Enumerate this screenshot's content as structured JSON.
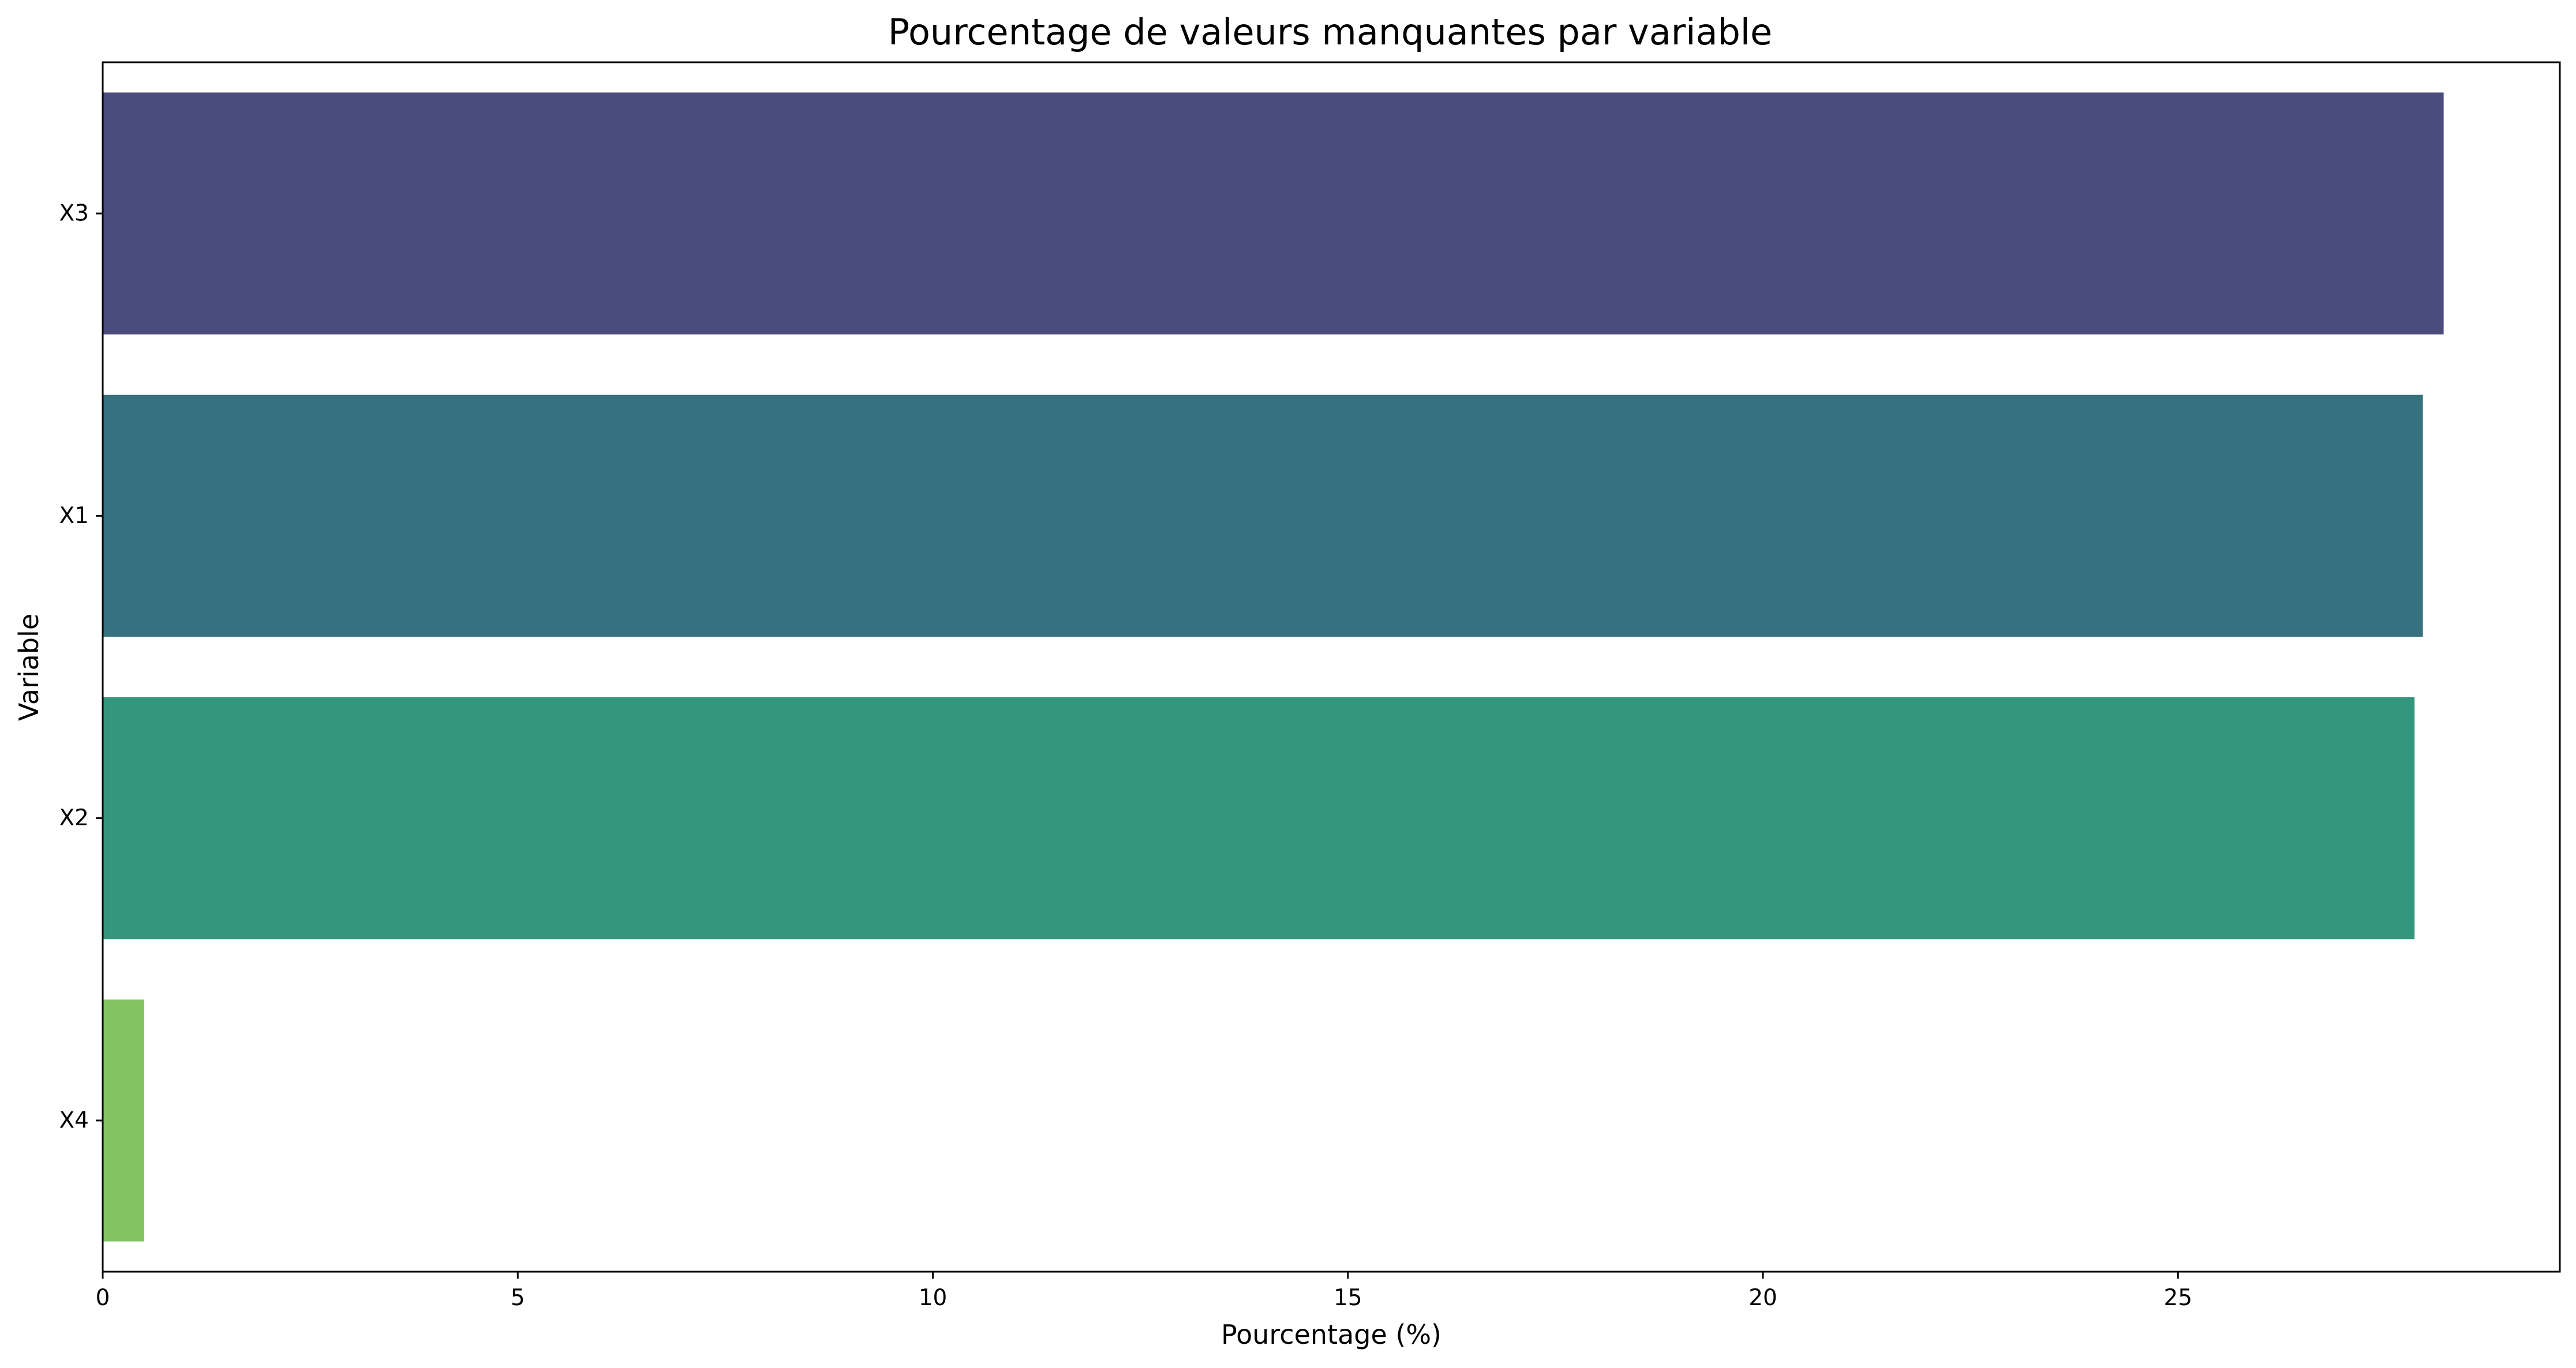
{
  "chart_data": {
    "type": "bar",
    "orientation": "horizontal",
    "title": "Pourcentage de valeurs manquantes par variable",
    "xlabel": "Pourcentage (%)",
    "ylabel": "Variable",
    "categories": [
      "X3",
      "X1",
      "X2",
      "X4"
    ],
    "values": [
      28.2,
      27.95,
      27.85,
      0.5
    ],
    "colors": [
      "#4a4c7e",
      "#367180",
      "#34967c",
      "#82c362"
    ],
    "xlim": [
      0,
      29.6
    ],
    "xticks": [
      0,
      5,
      10,
      15,
      20,
      25
    ],
    "xtick_labels": [
      "0",
      "5",
      "10",
      "15",
      "20",
      "25"
    ],
    "grid": false,
    "legend": "none"
  }
}
